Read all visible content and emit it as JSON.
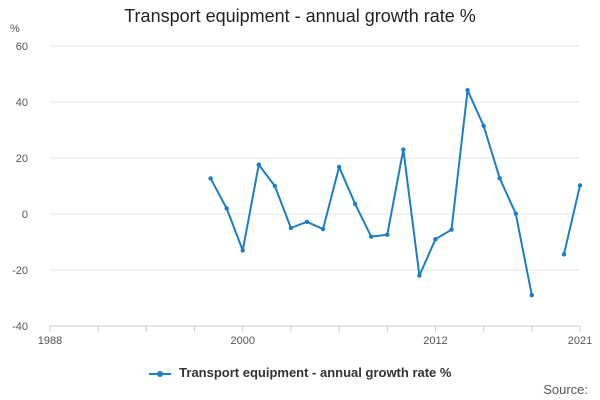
{
  "chart_data": {
    "type": "line",
    "title": "Transport equipment - annual growth rate %",
    "ylabel": "%",
    "xlabel": "",
    "ylim": [
      -40,
      60
    ],
    "xlim": [
      1988,
      2021
    ],
    "yticks": [
      -40,
      -20,
      0,
      20,
      40,
      60
    ],
    "xticks": [
      1988,
      2000,
      2012,
      2021
    ],
    "series": [
      {
        "name": "Transport equipment - annual growth rate %",
        "color": "#1a7fc4",
        "points": [
          {
            "x": 1998,
            "y": 12.7
          },
          {
            "x": 1999,
            "y": 2.0
          },
          {
            "x": 2000,
            "y": -13.0
          },
          {
            "x": 2001,
            "y": 17.6
          },
          {
            "x": 2002,
            "y": 10.0
          },
          {
            "x": 2003,
            "y": -5.0
          },
          {
            "x": 2004,
            "y": -2.8
          },
          {
            "x": 2005,
            "y": -5.4
          },
          {
            "x": 2006,
            "y": 16.8
          },
          {
            "x": 2007,
            "y": 3.6
          },
          {
            "x": 2008,
            "y": -8.1
          },
          {
            "x": 2009,
            "y": -7.4
          },
          {
            "x": 2010,
            "y": 23.0
          },
          {
            "x": 2011,
            "y": -22.0
          },
          {
            "x": 2012,
            "y": -9.0
          },
          {
            "x": 2013,
            "y": -5.6
          },
          {
            "x": 2014,
            "y": 44.2
          },
          {
            "x": 2015,
            "y": 31.5
          },
          {
            "x": 2016,
            "y": 12.8
          },
          {
            "x": 2017,
            "y": 0.1
          },
          {
            "x": 2018,
            "y": -29.0
          },
          {
            "x": 2019,
            "y": null
          },
          {
            "x": 2020,
            "y": -14.4
          },
          {
            "x": 2021,
            "y": 10.2
          }
        ]
      }
    ],
    "legend": "bottom-center"
  },
  "footer": {
    "source_label": "Source:"
  }
}
